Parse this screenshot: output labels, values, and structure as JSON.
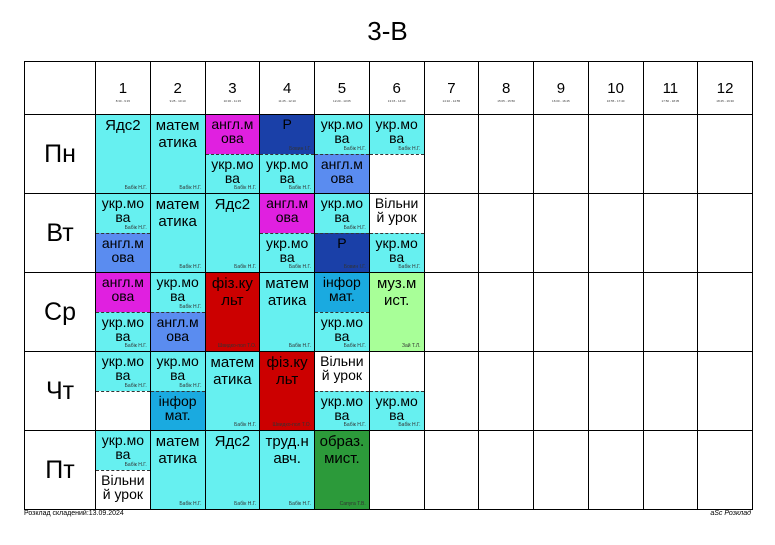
{
  "title": "3-В",
  "periods": [
    {
      "num": "1",
      "time": "8:30 - 9:15"
    },
    {
      "num": "2",
      "time": "9:25 - 10:10"
    },
    {
      "num": "3",
      "time": "10:30 - 11:15"
    },
    {
      "num": "4",
      "time": "11:25 - 12:10"
    },
    {
      "num": "5",
      "time": "12:20 - 13:05"
    },
    {
      "num": "6",
      "time": "13:15 - 14:00"
    },
    {
      "num": "7",
      "time": "14:10 - 14:55"
    },
    {
      "num": "8",
      "time": "15:05 - 15:50"
    },
    {
      "num": "9",
      "time": "16:00 - 16:45"
    },
    {
      "num": "10",
      "time": "16:55 - 17:40"
    },
    {
      "num": "11",
      "time": "17:50 - 18:35"
    },
    {
      "num": "12",
      "time": "18:45 - 19:30"
    }
  ],
  "days": [
    {
      "name": "Пн",
      "cells": [
        {
          "type": "full",
          "subject": "Ядс2",
          "teacher": "Бабік Н.Г.",
          "color": "cyan"
        },
        {
          "type": "full",
          "subject": "матем атика",
          "teacher": "Бабік Н.Г.",
          "color": "cyan"
        },
        {
          "type": "split",
          "top": {
            "subject": "англ.м ова",
            "teacher": "",
            "color": "mag"
          },
          "bot": {
            "subject": "укр.мо ва",
            "teacher": "Бабік Н.Г.",
            "color": "cyan"
          }
        },
        {
          "type": "split",
          "top": {
            "subject": "Р",
            "teacher": "Бовин І.Г.",
            "color": "navy"
          },
          "bot": {
            "subject": "укр.мо ва",
            "teacher": "Бабік Н.Г.",
            "color": "cyan"
          }
        },
        {
          "type": "split",
          "top": {
            "subject": "укр.мо ва",
            "teacher": "Бабік Н.Г.",
            "color": "cyan"
          },
          "bot": {
            "subject": "англ.м ова",
            "teacher": "",
            "color": "blue"
          }
        },
        {
          "type": "split",
          "top": {
            "subject": "укр.мо ва",
            "teacher": "Бабік Н.Г.",
            "color": "cyan"
          },
          "bot": {
            "subject": "",
            "teacher": "",
            "color": "none"
          }
        },
        {
          "type": "empty"
        },
        {
          "type": "empty"
        },
        {
          "type": "empty"
        },
        {
          "type": "empty"
        },
        {
          "type": "empty"
        },
        {
          "type": "empty"
        }
      ]
    },
    {
      "name": "Вт",
      "cells": [
        {
          "type": "split",
          "top": {
            "subject": "укр.мо ва",
            "teacher": "Бабік Н.Г.",
            "color": "cyan"
          },
          "bot": {
            "subject": "англ.м ова",
            "teacher": "",
            "color": "blue"
          }
        },
        {
          "type": "full",
          "subject": "матем атика",
          "teacher": "Бабік Н.Г.",
          "color": "cyan"
        },
        {
          "type": "full",
          "subject": "Ядс2",
          "teacher": "Бабік Н.Г.",
          "color": "cyan"
        },
        {
          "type": "split",
          "top": {
            "subject": "англ.м ова",
            "teacher": "",
            "color": "mag"
          },
          "bot": {
            "subject": "укр.мо ва",
            "teacher": "Бабік Н.Г.",
            "color": "cyan"
          }
        },
        {
          "type": "split",
          "top": {
            "subject": "укр.мо ва",
            "teacher": "Бабік Н.Г.",
            "color": "cyan"
          },
          "bot": {
            "subject": "Р",
            "teacher": "Бовин І.Г.",
            "color": "navy"
          }
        },
        {
          "type": "split",
          "top": {
            "subject": "Вільни й урок",
            "teacher": "",
            "color": "none"
          },
          "bot": {
            "subject": "укр.мо ва",
            "teacher": "Бабік Н.Г.",
            "color": "cyan"
          }
        },
        {
          "type": "empty"
        },
        {
          "type": "empty"
        },
        {
          "type": "empty"
        },
        {
          "type": "empty"
        },
        {
          "type": "empty"
        },
        {
          "type": "empty"
        }
      ]
    },
    {
      "name": "Ср",
      "cells": [
        {
          "type": "split",
          "top": {
            "subject": "англ.м ова",
            "teacher": "",
            "color": "mag"
          },
          "bot": {
            "subject": "укр.мо ва",
            "teacher": "Бабік Н.Г.",
            "color": "cyan"
          }
        },
        {
          "type": "split",
          "top": {
            "subject": "укр.мо ва",
            "teacher": "Бабік Н.Г.",
            "color": "cyan"
          },
          "bot": {
            "subject": "англ.м ова",
            "teacher": "",
            "color": "blue"
          }
        },
        {
          "type": "full",
          "subject": "фіз.ку льт",
          "teacher": "Швидко-пол Т.О.",
          "color": "red"
        },
        {
          "type": "full",
          "subject": "матем атика",
          "teacher": "Бабік Н.Г.",
          "color": "cyan"
        },
        {
          "type": "split",
          "top": {
            "subject": "інфор мат.",
            "teacher": "",
            "color": "sky"
          },
          "bot": {
            "subject": "укр.мо ва",
            "teacher": "Бабік Н.Г.",
            "color": "cyan"
          }
        },
        {
          "type": "full",
          "subject": "муз.м ист.",
          "teacher": "Зай Т.Л.",
          "color": "lgreen"
        },
        {
          "type": "empty"
        },
        {
          "type": "empty"
        },
        {
          "type": "empty"
        },
        {
          "type": "empty"
        },
        {
          "type": "empty"
        },
        {
          "type": "empty"
        }
      ]
    },
    {
      "name": "Чт",
      "cells": [
        {
          "type": "split",
          "top": {
            "subject": "укр.мо ва",
            "teacher": "Бабік Н.Г.",
            "color": "cyan"
          },
          "bot": {
            "subject": "",
            "teacher": "",
            "color": "none"
          }
        },
        {
          "type": "split",
          "top": {
            "subject": "укр.мо ва",
            "teacher": "Бабік Н.Г.",
            "color": "cyan"
          },
          "bot": {
            "subject": "інфор мат.",
            "teacher": "",
            "color": "sky"
          }
        },
        {
          "type": "full",
          "subject": "матем атика",
          "teacher": "Бабік Н.Г.",
          "color": "cyan"
        },
        {
          "type": "full",
          "subject": "фіз.ку льт",
          "teacher": "Швидко-пол Т.О.",
          "color": "red"
        },
        {
          "type": "split",
          "top": {
            "subject": "Вільни й урок",
            "teacher": "",
            "color": "none"
          },
          "bot": {
            "subject": "укр.мо ва",
            "teacher": "Бабік Н.Г.",
            "color": "cyan"
          }
        },
        {
          "type": "split",
          "top": {
            "subject": "",
            "teacher": "",
            "color": "none"
          },
          "bot": {
            "subject": "укр.мо ва",
            "teacher": "Бабік Н.Г.",
            "color": "cyan"
          }
        },
        {
          "type": "empty"
        },
        {
          "type": "empty"
        },
        {
          "type": "empty"
        },
        {
          "type": "empty"
        },
        {
          "type": "empty"
        },
        {
          "type": "empty"
        }
      ]
    },
    {
      "name": "Пт",
      "cells": [
        {
          "type": "split",
          "top": {
            "subject": "укр.мо ва",
            "teacher": "Бабік Н.Г.",
            "color": "cyan"
          },
          "bot": {
            "subject": "Вільни й урок",
            "teacher": "",
            "color": "none"
          }
        },
        {
          "type": "full",
          "subject": "матем атика",
          "teacher": "Бабік Н.Г.",
          "color": "cyan"
        },
        {
          "type": "full",
          "subject": "Ядс2",
          "teacher": "Бабік Н.Г.",
          "color": "cyan"
        },
        {
          "type": "full",
          "subject": "труд.н авч.",
          "teacher": "Бабік Н.Г.",
          "color": "cyan"
        },
        {
          "type": "full",
          "subject": "образ. мист.",
          "teacher": "Сапуга Т.В.",
          "color": "green"
        },
        {
          "type": "empty"
        },
        {
          "type": "empty"
        },
        {
          "type": "empty"
        },
        {
          "type": "empty"
        },
        {
          "type": "empty"
        },
        {
          "type": "empty"
        },
        {
          "type": "empty"
        }
      ]
    }
  ],
  "footer": {
    "left": "Розклад складений:13.09.2024",
    "right": "aSc Розклад"
  }
}
